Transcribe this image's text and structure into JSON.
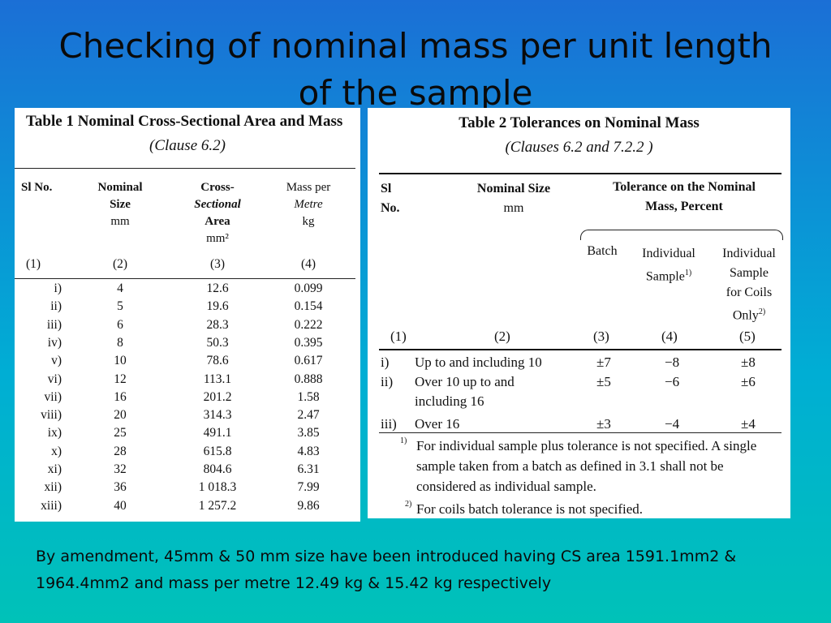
{
  "slide": {
    "title": "Checking of nominal mass per unit length of the sample",
    "note": "By amendment, 45mm & 50 mm size have been introduced having CS area 1591.1mm2 & 1964.4mm2 and mass per metre 12.49 kg & 15.42 kg respectively"
  },
  "table1": {
    "title": "Table 1 Nominal Cross-Sectional Area and Mass",
    "clause": "(Clause 6.2)",
    "headers": {
      "sl": "Sl No.",
      "size": [
        "Nominal",
        "Size",
        "mm"
      ],
      "area": [
        "Cross-",
        "Sectional",
        "Area",
        "mm²"
      ],
      "mass": [
        "Mass per",
        "Metre",
        "kg"
      ]
    },
    "colnums": [
      "(1)",
      "(2)",
      "(3)",
      "(4)"
    ],
    "rows": [
      [
        "i)",
        "4",
        "12.6",
        "0.099"
      ],
      [
        "ii)",
        "5",
        "19.6",
        "0.154"
      ],
      [
        "iii)",
        "6",
        "28.3",
        "0.222"
      ],
      [
        "iv)",
        "8",
        "50.3",
        "0.395"
      ],
      [
        "v)",
        "10",
        "78.6",
        "0.617"
      ],
      [
        "vi)",
        "12",
        "113.1",
        "0.888"
      ],
      [
        "vii)",
        "16",
        "201.2",
        "1.58"
      ],
      [
        "viii)",
        "20",
        "314.3",
        "2.47"
      ],
      [
        "ix)",
        "25",
        "491.1",
        "3.85"
      ],
      [
        "x)",
        "28",
        "615.8",
        "4.83"
      ],
      [
        "xi)",
        "32",
        "804.6",
        "6.31"
      ],
      [
        "xii)",
        "36",
        "1 018.3",
        "7.99"
      ],
      [
        "xiii)",
        "40",
        "1 257.2",
        "9.86"
      ]
    ]
  },
  "table2": {
    "title": "Table 2 Tolerances on Nominal Mass",
    "clause": "(Clauses 6.2 and 7.2.2 )",
    "headers": {
      "sl": [
        "Sl",
        "No."
      ],
      "size": [
        "Nominal Size",
        "mm"
      ],
      "tol": [
        "Tolerance on the Nominal",
        "Mass, Percent"
      ],
      "batch": "Batch",
      "individual": [
        "Individual",
        "Sample"
      ],
      "individual_sup": "1)",
      "coils": [
        "Individual",
        "Sample",
        "for Coils",
        "Only"
      ],
      "coils_sup": "2)"
    },
    "colnums": [
      "(1)",
      "(2)",
      "(3)",
      "(4)",
      "(5)"
    ],
    "rows": [
      {
        "sl": "i)",
        "size": [
          "Up to and including 10"
        ],
        "batch": "±7",
        "ind": "−8",
        "coil": "±8"
      },
      {
        "sl": "ii)",
        "size": [
          "Over 10 up to and",
          "including 16"
        ],
        "batch": "±5",
        "ind": "−6",
        "coil": "±6"
      },
      {
        "sl": "iii)",
        "size": [
          "Over 16"
        ],
        "batch": "±3",
        "ind": "−4",
        "coil": "±4"
      }
    ],
    "footnotes": [
      {
        "mark": "1)",
        "lines": [
          "For individual sample plus tolerance is not specified. A single",
          "sample taken from a batch as defined in 3.1 shall not be",
          "considered as individual sample."
        ]
      },
      {
        "mark": "2)",
        "lines": [
          "For coils batch tolerance is not specified."
        ]
      }
    ]
  }
}
